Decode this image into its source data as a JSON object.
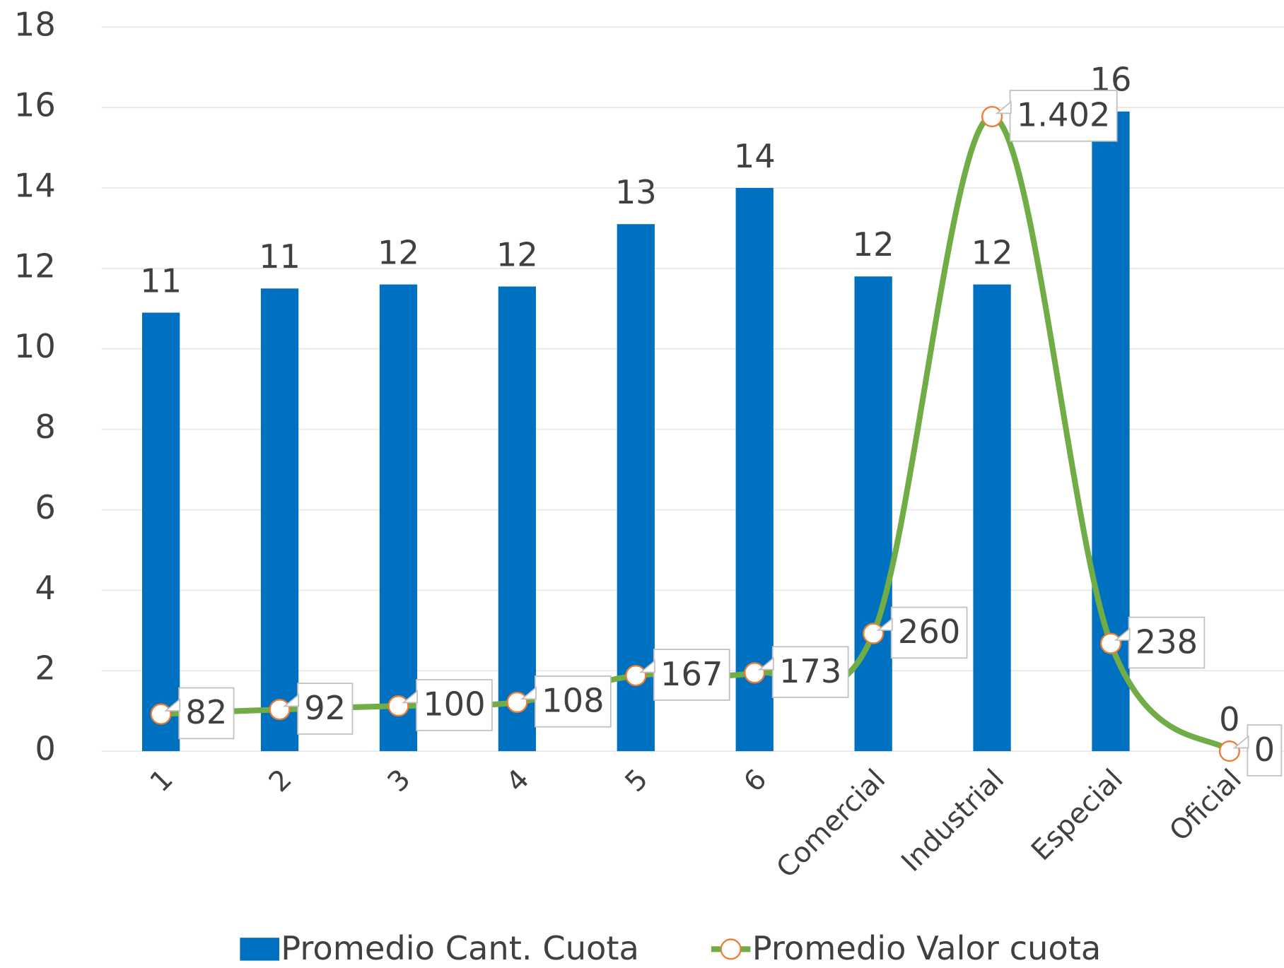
{
  "chart_data": {
    "type": "bar+line",
    "categories": [
      "1",
      "2",
      "3",
      "4",
      "5",
      "6",
      "Comercial",
      "Industrial",
      "Especial",
      "Oficial"
    ],
    "series": [
      {
        "name": "Promedio Cant. Cuota",
        "type": "bar",
        "color": "#0070c0",
        "values": [
          10.9,
          11.5,
          11.6,
          11.55,
          13.1,
          14,
          11.8,
          11.6,
          15.9,
          0
        ],
        "value_labels": [
          "11",
          "11",
          "12",
          "12",
          "13",
          "14",
          "12",
          "12",
          "16",
          "0"
        ]
      },
      {
        "name": "Promedio Valor cuota",
        "type": "line",
        "axis": "y2",
        "color": "#70ad47",
        "marker_color": "#ed7d31",
        "values": [
          82,
          92,
          100,
          108,
          167,
          173,
          260,
          1402,
          238,
          0
        ],
        "value_labels": [
          "82",
          "92",
          "100",
          "108",
          "167",
          "173",
          "260",
          "1.402",
          "238",
          "0"
        ]
      }
    ],
    "ylim": [
      0,
      18
    ],
    "yticks": [
      0,
      2,
      4,
      6,
      8,
      10,
      12,
      14,
      16,
      18
    ],
    "y2lim": [
      0,
      1600
    ],
    "grid": true,
    "legend": "bottom"
  }
}
